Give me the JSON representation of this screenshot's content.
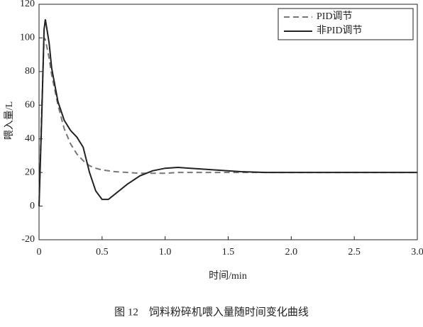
{
  "chart_data": {
    "type": "line",
    "caption": "图 12　饲料粉碎机喂入量随时间变化曲线",
    "xlabel": "时间/min",
    "ylabel": "喂入量/L",
    "x": [
      0,
      0.02,
      0.04,
      0.05,
      0.08,
      0.1,
      0.15,
      0.2,
      0.25,
      0.3,
      0.35,
      0.4,
      0.45,
      0.5,
      0.55,
      0.6,
      0.7,
      0.8,
      0.9,
      1.0,
      1.1,
      1.2,
      1.4,
      1.6,
      1.8,
      2.0,
      2.5,
      3.0
    ],
    "series": [
      {
        "name": "PID调节",
        "color": "#777777",
        "dashed": true,
        "values": [
          0,
          55,
          100,
          99,
          88,
          78,
          60,
          46,
          37,
          31,
          27,
          24,
          22.5,
          21.5,
          21,
          20.5,
          20,
          19.5,
          19.5,
          19.5,
          20,
          20,
          20,
          20,
          20,
          20,
          20,
          20
        ]
      },
      {
        "name": "非PID调节",
        "color": "#222222",
        "dashed": false,
        "values": [
          0,
          50,
          105,
          111,
          97,
          82,
          62,
          51,
          45,
          41,
          35,
          20,
          9,
          4,
          4,
          7,
          13,
          18,
          21,
          22.5,
          23,
          22.5,
          21.5,
          20.5,
          20,
          20,
          20,
          20
        ]
      }
    ],
    "xlim": [
      0,
      3
    ],
    "ylim": [
      -20,
      120
    ],
    "xticks": [
      0,
      0.5,
      {
        "value": 1,
        "label": "1.0"
      },
      1.5,
      {
        "value": 2,
        "label": "2.0"
      },
      2.5,
      {
        "value": 3,
        "label": "3.0"
      }
    ],
    "yticks": [
      -20,
      0,
      20,
      40,
      60,
      80,
      100,
      120
    ],
    "legend": "upper-right"
  }
}
